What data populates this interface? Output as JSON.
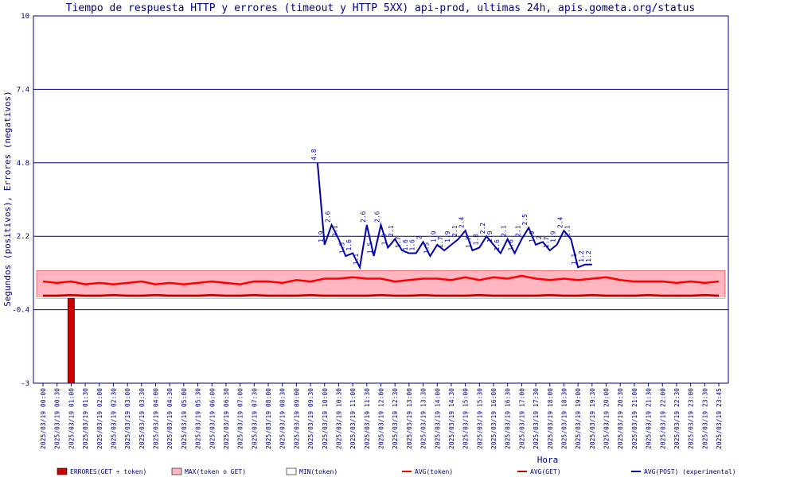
{
  "chart_data": {
    "type": "line",
    "title": "Tiempo de respuesta HTTP y errores (timeout y HTTP 5XX) api-prod, ultimas 24h, apis.gometa.org/status",
    "ylabel": "Segundos (positivos), Errores (negativos)",
    "xlabel": "Hora",
    "ylim": [
      -3,
      10
    ],
    "yticks": [
      "10",
      "7.4",
      "4.8",
      "2.2",
      "-0.4",
      "-3"
    ],
    "grid": "horizontal",
    "legend_position": "bottom",
    "x": [
      "2025/03/19 00:00",
      "2025/03/19 00:30",
      "2025/03/19 01:00",
      "2025/03/19 01:30",
      "2025/03/19 02:00",
      "2025/03/19 02:30",
      "2025/03/19 03:00",
      "2025/03/19 03:30",
      "2025/03/19 04:00",
      "2025/03/19 04:30",
      "2025/03/19 05:00",
      "2025/03/19 05:30",
      "2025/03/19 06:00",
      "2025/03/19 06:30",
      "2025/03/19 07:00",
      "2025/03/19 07:30",
      "2025/03/19 08:00",
      "2025/03/19 08:30",
      "2025/03/19 09:00",
      "2025/03/19 09:30",
      "2025/03/19 10:00",
      "2025/03/19 10:30",
      "2025/03/19 11:00",
      "2025/03/19 11:30",
      "2025/03/19 12:00",
      "2025/03/19 12:30",
      "2025/03/19 13:00",
      "2025/03/19 13:30",
      "2025/03/19 14:00",
      "2025/03/19 14:30",
      "2025/03/19 15:00",
      "2025/03/19 15:30",
      "2025/03/19 16:00",
      "2025/03/19 16:30",
      "2025/03/19 17:00",
      "2025/03/19 17:30",
      "2025/03/19 18:00",
      "2025/03/19 18:30",
      "2025/03/19 19:00",
      "2025/03/19 19:30",
      "2025/03/19 20:00",
      "2025/03/19 20:30",
      "2025/03/19 21:00",
      "2025/03/19 21:30",
      "2025/03/19 22:00",
      "2025/03/19 22:30",
      "2025/03/19 23:00",
      "2025/03/19 23:30",
      "2025/03/19 23:45"
    ],
    "series": [
      {
        "name": "ERRORES(GET + token)",
        "kind": "bar",
        "color": "#cc0000",
        "points": [
          {
            "x": "2025/03/19 01:00",
            "y": -3
          }
        ]
      },
      {
        "name": "MAX(token o GET)",
        "kind": "band",
        "color": "#ffb6c1",
        "low": 0.0,
        "high": 0.98
      },
      {
        "name": "MIN(token)",
        "kind": "band",
        "color": "#ffffff",
        "low": 0.0,
        "high": 0.05
      },
      {
        "name": "AVG(token)",
        "kind": "line",
        "color": "#ff0000",
        "values": [
          0.6,
          0.55,
          0.6,
          0.5,
          0.55,
          0.5,
          0.55,
          0.6,
          0.5,
          0.55,
          0.5,
          0.55,
          0.6,
          0.55,
          0.5,
          0.6,
          0.6,
          0.55,
          0.65,
          0.6,
          0.7,
          0.7,
          0.75,
          0.7,
          0.7,
          0.6,
          0.65,
          0.7,
          0.7,
          0.65,
          0.75,
          0.65,
          0.75,
          0.7,
          0.8,
          0.7,
          0.65,
          0.7,
          0.65,
          0.7,
          0.75,
          0.65,
          0.6,
          0.6,
          0.6,
          0.55,
          0.6,
          0.55,
          0.6
        ]
      },
      {
        "name": "AVG(GET)",
        "kind": "line",
        "color": "#bb0000",
        "values": [
          0.1,
          0.1,
          0.12,
          0.1,
          0.1,
          0.12,
          0.1,
          0.1,
          0.12,
          0.1,
          0.1,
          0.1,
          0.12,
          0.1,
          0.1,
          0.12,
          0.1,
          0.1,
          0.1,
          0.12,
          0.1,
          0.1,
          0.1,
          0.1,
          0.12,
          0.1,
          0.1,
          0.12,
          0.1,
          0.1,
          0.1,
          0.12,
          0.1,
          0.1,
          0.1,
          0.1,
          0.12,
          0.1,
          0.1,
          0.12,
          0.1,
          0.1,
          0.1,
          0.12,
          0.1,
          0.1,
          0.1,
          0.12,
          0.1
        ]
      },
      {
        "name": "AVG(POST) (experimental)",
        "kind": "line",
        "color": "#0000aa",
        "points": [
          {
            "x": 19.5,
            "y": 4.8
          },
          {
            "x": 20,
            "y": 1.9
          },
          {
            "x": 20.5,
            "y": 2.6
          },
          {
            "x": 21,
            "y": 2.1
          },
          {
            "x": 21.5,
            "y": 1.5
          },
          {
            "x": 22,
            "y": 1.6
          },
          {
            "x": 22.5,
            "y": 1.1
          },
          {
            "x": 23,
            "y": 2.6
          },
          {
            "x": 23.5,
            "y": 1.5
          },
          {
            "x": 24,
            "y": 2.6
          },
          {
            "x": 24.5,
            "y": 1.8
          },
          {
            "x": 25,
            "y": 2.1
          },
          {
            "x": 25.5,
            "y": 1.7
          },
          {
            "x": 26,
            "y": 1.6
          },
          {
            "x": 26.5,
            "y": 1.6
          },
          {
            "x": 27,
            "y": 2.0
          },
          {
            "x": 27.5,
            "y": 1.5
          },
          {
            "x": 28,
            "y": 1.9
          },
          {
            "x": 28.5,
            "y": 1.7
          },
          {
            "x": 29,
            "y": 1.9
          },
          {
            "x": 29.5,
            "y": 2.1
          },
          {
            "x": 30,
            "y": 2.4
          },
          {
            "x": 30.5,
            "y": 1.7
          },
          {
            "x": 31,
            "y": 1.8
          },
          {
            "x": 31.5,
            "y": 2.2
          },
          {
            "x": 32,
            "y": 1.9
          },
          {
            "x": 32.5,
            "y": 1.6
          },
          {
            "x": 33,
            "y": 2.1
          },
          {
            "x": 33.5,
            "y": 1.6
          },
          {
            "x": 34,
            "y": 2.1
          },
          {
            "x": 34.5,
            "y": 2.5
          },
          {
            "x": 35,
            "y": 1.9
          },
          {
            "x": 35.5,
            "y": 2.0
          },
          {
            "x": 36,
            "y": 1.7
          },
          {
            "x": 36.5,
            "y": 1.9
          },
          {
            "x": 37,
            "y": 2.4
          },
          {
            "x": 37.5,
            "y": 2.1
          },
          {
            "x": 38,
            "y": 1.1
          },
          {
            "x": 38.5,
            "y": 1.2
          },
          {
            "x": 39,
            "y": 1.2
          }
        ]
      }
    ]
  }
}
